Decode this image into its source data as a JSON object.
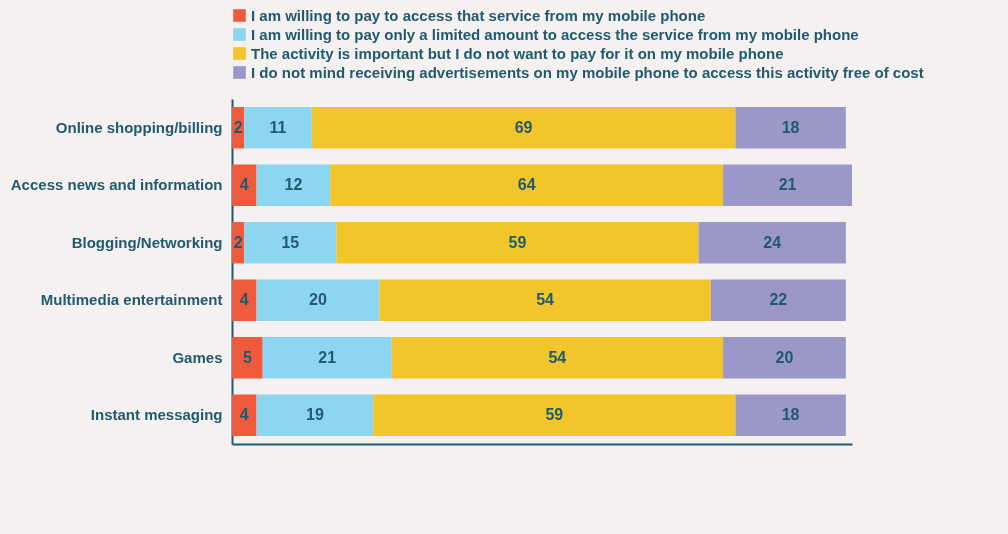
{
  "chart_data": {
    "type": "bar",
    "orientation": "horizontal",
    "stacked": true,
    "data_labels": true,
    "legend": "top",
    "tick_labels": "y",
    "xlim": [
      0,
      101
    ],
    "categories": [
      "Online shopping/billing",
      "Access news and information",
      "Blogging/Networking",
      "Multimedia entertainment",
      "Games",
      "Instant messaging"
    ],
    "series": [
      {
        "name": "I am willing to pay to access that service from my mobile phone",
        "color": "#f05a3c",
        "values": [
          2,
          4,
          2,
          4,
          5,
          4
        ]
      },
      {
        "name": "I am willing to pay only a limited amount to access the service from my mobile phone",
        "color": "#8dd6f2",
        "values": [
          11,
          12,
          15,
          20,
          21,
          19
        ]
      },
      {
        "name": "The activity is important but I do not want to pay for it on my mobile phone",
        "color": "#f2c62a",
        "values": [
          69,
          64,
          59,
          54,
          54,
          59
        ]
      },
      {
        "name": "I do not mind receiving advertisements on my mobile phone to access this activity free of cost",
        "color": "#9c97c9",
        "values": [
          18,
          21,
          24,
          22,
          20,
          18
        ]
      }
    ]
  }
}
